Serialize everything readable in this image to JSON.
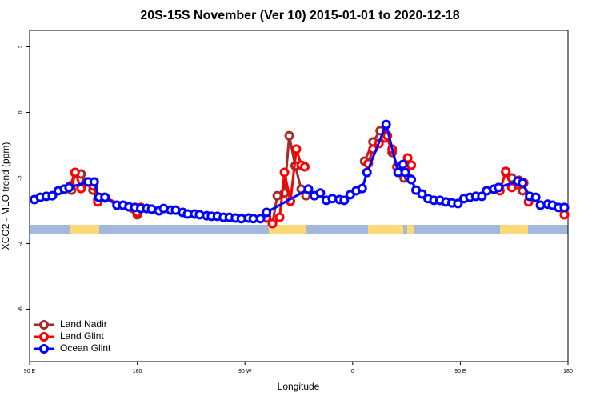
{
  "chart_data": {
    "type": "line",
    "title": "20S-15S November (Ver 10)   2015-01-01 to 2020-12-18",
    "x_label": "Longitude",
    "y_label": "XCO2 - MLO trend (ppm)",
    "xlim": [
      90,
      540
    ],
    "ylim": [
      -7.6,
      2.5
    ],
    "xticks": [
      {
        "value": 90,
        "label": "90 E"
      },
      180,
      {
        "value": 270,
        "label": "90 W"
      },
      {
        "value": 360,
        "label": "0"
      },
      {
        "value": 450,
        "label": "90 E"
      },
      {
        "value": 540,
        "label": "180"
      }
    ],
    "yticks": [
      -6,
      -4,
      -2,
      0,
      2
    ],
    "legend": "bottomleft",
    "series": [
      {
        "name": "Land Nadir",
        "color": "#a52a2a",
        "x": [
          125,
          128,
          133,
          137,
          143,
          147,
          153,
          180,
          183,
          null,
          288,
          293,
          297,
          303,
          307,
          312,
          317,
          321,
          null,
          370,
          377,
          383,
          388,
          393,
          398,
          403,
          407,
          null,
          483,
          488,
          493,
          499,
          502,
          null,
          537
        ],
        "values": [
          -2.37,
          -1.85,
          -1.88,
          -2.12,
          -2.37,
          -2.66,
          -2.61,
          -3.12,
          -2.9,
          null,
          -3.17,
          -3.39,
          -2.54,
          -2.46,
          -0.71,
          -1.63,
          -2.34,
          -2.54,
          null,
          -1.49,
          -0.9,
          -0.56,
          -0.68,
          -1.22,
          -1.68,
          -2.0,
          -2.0,
          null,
          -2.37,
          -1.83,
          -2.0,
          -2.07,
          -2.39,
          null,
          -3.12
        ]
      },
      {
        "name": "Land Glint",
        "color": "#ff0000",
        "x": [
          124,
          128,
          133,
          139,
          143,
          147,
          153,
          180,
          183,
          null,
          288,
          293,
          299,
          303,
          308,
          313,
          317,
          320,
          null,
          373,
          377,
          382,
          387,
          389,
          393,
          397,
          401,
          406,
          409,
          null,
          483,
          488,
          493,
          498,
          503,
          507,
          null,
          537
        ],
        "values": [
          -2.24,
          -1.83,
          -2.32,
          -2.12,
          -2.24,
          -2.73,
          -2.59,
          -3.05,
          -2.9,
          null,
          -3.22,
          -3.39,
          -3.2,
          -1.83,
          -2.71,
          -1.12,
          -1.61,
          -1.66,
          null,
          -1.56,
          -1.12,
          -0.95,
          -0.78,
          -0.71,
          -1.12,
          -1.66,
          -1.8,
          -1.39,
          -1.61,
          null,
          -2.39,
          -1.8,
          -2.29,
          -2.2,
          -2.15,
          -2.73,
          null,
          -3.12
        ]
      },
      {
        "name": "Ocean Glint",
        "color": "#0000ff",
        "x": [
          94,
          99,
          104,
          109,
          114,
          119,
          123,
          139,
          144,
          148,
          153,
          163,
          168,
          173,
          178,
          183,
          188,
          192,
          198,
          202,
          208,
          212,
          218,
          222,
          228,
          232,
          238,
          242,
          247,
          252,
          257,
          262,
          267,
          273,
          277,
          283,
          288,
          323,
          328,
          333,
          338,
          343,
          349,
          353,
          358,
          363,
          368,
          372,
          388,
          398,
          402,
          404,
          409,
          413,
          418,
          423,
          428,
          433,
          438,
          443,
          448,
          453,
          458,
          463,
          468,
          472,
          478,
          482,
          498,
          502,
          508,
          513,
          517,
          523,
          527,
          532,
          537
        ],
        "values": [
          -2.66,
          -2.59,
          -2.56,
          -2.54,
          -2.39,
          -2.34,
          -2.29,
          -2.12,
          -2.12,
          -2.59,
          -2.59,
          -2.83,
          -2.83,
          -2.88,
          -2.9,
          -2.93,
          -2.93,
          -2.95,
          -3.0,
          -2.93,
          -2.98,
          -2.98,
          -3.05,
          -3.1,
          -3.1,
          -3.12,
          -3.15,
          -3.17,
          -3.17,
          -3.2,
          -3.2,
          -3.22,
          -3.24,
          -3.22,
          -3.24,
          -3.24,
          -3.05,
          -2.34,
          -2.54,
          -2.46,
          -2.68,
          -2.63,
          -2.66,
          -2.68,
          -2.51,
          -2.39,
          -2.32,
          -1.83,
          -0.37,
          -1.83,
          -1.59,
          -1.83,
          -2.05,
          -2.37,
          -2.49,
          -2.63,
          -2.68,
          -2.68,
          -2.73,
          -2.76,
          -2.78,
          -2.63,
          -2.59,
          -2.56,
          -2.56,
          -2.39,
          -2.34,
          -2.29,
          -2.1,
          -2.15,
          -2.56,
          -2.59,
          -2.83,
          -2.8,
          -2.83,
          -2.9,
          -2.9
        ]
      }
    ]
  }
}
